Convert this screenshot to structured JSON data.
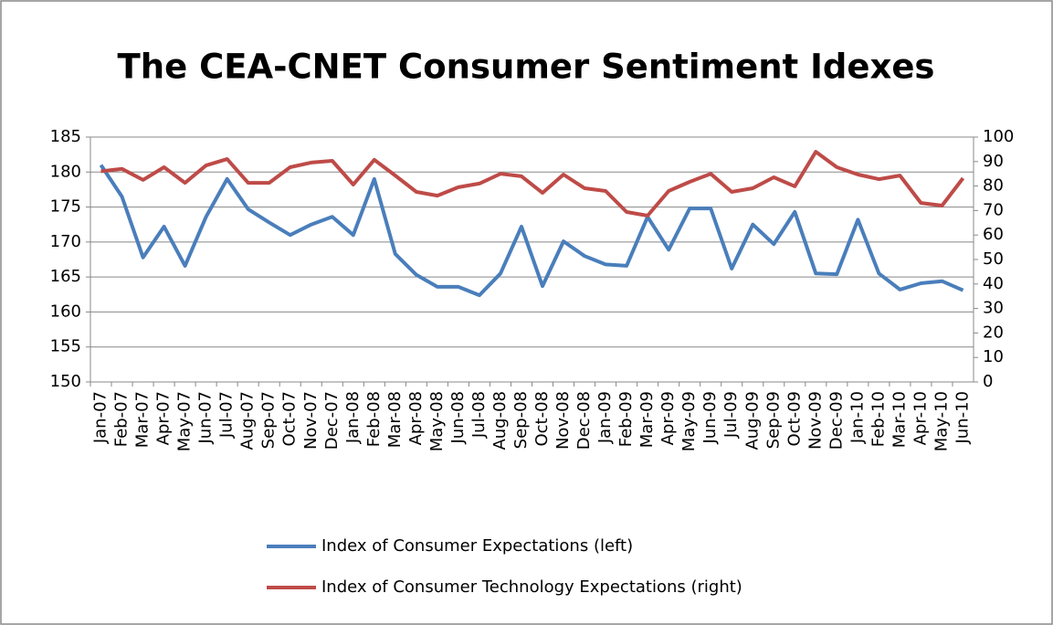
{
  "chart_data": {
    "type": "line",
    "title": "The CEA-CNET Consumer Sentiment Idexes",
    "categories": [
      "Jan-07",
      "Feb-07",
      "Mar-07",
      "Apr-07",
      "May-07",
      "Jun-07",
      "Jul-07",
      "Aug-07",
      "Sep-07",
      "Oct-07",
      "Nov-07",
      "Dec-07",
      "Jan-08",
      "Feb-08",
      "Mar-08",
      "Apr-08",
      "May-08",
      "Jun-08",
      "Jul-08",
      "Aug-08",
      "Sep-08",
      "Oct-08",
      "Nov-08",
      "Dec-08",
      "Jan-09",
      "Feb-09",
      "Mar-09",
      "Apr-09",
      "May-09",
      "Jun-09",
      "Jul-09",
      "Aug-09",
      "Sep-09",
      "Oct-09",
      "Nov-09",
      "Dec-09",
      "Jan-10",
      "Feb-10",
      "Mar-10",
      "Apr-10",
      "May-10",
      "Jun-10"
    ],
    "series": [
      {
        "name": "Index of Consumer Expectations (left)",
        "color": "#4a7ebb",
        "values": [
          181,
          176.5,
          167.8,
          172.2,
          166.6,
          173.6,
          179,
          174.7,
          172.8,
          171,
          172.5,
          173.6,
          171,
          179,
          168.3,
          165.3,
          163.6,
          163.6,
          162.4,
          165.5,
          172.2,
          163.7,
          170.1,
          168,
          166.8,
          166.6,
          173.6,
          168.9,
          174.8,
          174.8,
          166.2,
          172.5,
          169.7,
          174.3,
          165.5,
          165.4,
          173.2,
          165.5,
          163.2,
          164.1,
          164.4,
          163.1
        ]
      },
      {
        "name": "Index of Consumer Technology Expectations (right)",
        "color": "#be4b48",
        "axis": "y2",
        "values": [
          86,
          87,
          82.5,
          87.7,
          81.3,
          88.4,
          91,
          81.3,
          81.3,
          87.7,
          89.6,
          90.3,
          80.6,
          90.7,
          84.3,
          77.6,
          76.1,
          79.5,
          81,
          85,
          84,
          77.2,
          84.7,
          79.1,
          78,
          69.4,
          67.9,
          78,
          81.7,
          85,
          77.6,
          79.1,
          83.6,
          79.9,
          94,
          87.7,
          84.7,
          82.8,
          84.3,
          73.1,
          72,
          83.2
        ]
      }
    ],
    "ylim": [
      150,
      185
    ],
    "yticks": [
      150,
      155,
      160,
      165,
      170,
      175,
      180,
      185
    ],
    "y2lim": [
      0,
      100
    ],
    "y2ticks": [
      0,
      10,
      20,
      30,
      40,
      50,
      60,
      70,
      80,
      90,
      100
    ],
    "grid": true,
    "legend": "bottom"
  }
}
